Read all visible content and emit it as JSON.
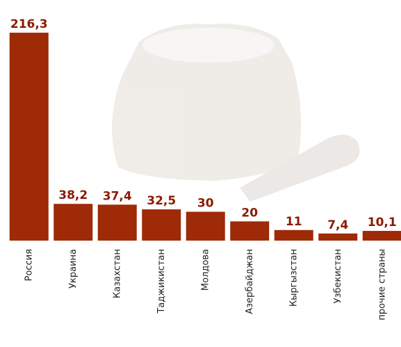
{
  "chart_data": {
    "type": "bar",
    "categories": [
      "Россия",
      "Украина",
      "Казахстан",
      "Таджикистан",
      "Молдова",
      "Азербайджан",
      "Кыргызстан",
      "Узбекистан",
      "прочие страны"
    ],
    "values": [
      216.3,
      38.2,
      37.4,
      32.5,
      30,
      20,
      11,
      7.4,
      10.1
    ],
    "value_labels": [
      "216,3",
      "38,2",
      "37,4",
      "32,5",
      "30",
      "20",
      "11",
      "7,4",
      "10,1"
    ],
    "color": "#9e2a07"
  }
}
